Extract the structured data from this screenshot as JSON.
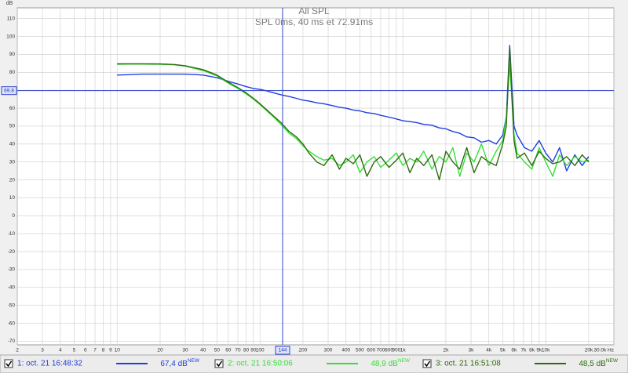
{
  "chart_data": {
    "type": "line",
    "title": "All SPL",
    "subtitle": "SPL 0ms, 40 ms et 72.91ms",
    "y_label": "dB",
    "log_x": true,
    "grid": true,
    "xlim": [
      2,
      30000
    ],
    "ylim": [
      -72,
      116
    ],
    "xticks": [
      2,
      3,
      4,
      5,
      6,
      7,
      8,
      9,
      10,
      20,
      30,
      40,
      50,
      60,
      70,
      80,
      90,
      100,
      200,
      300,
      400,
      500,
      600,
      700,
      800,
      900,
      {
        "value": 1000,
        "label": "1k"
      },
      {
        "value": 2000,
        "label": "2k"
      },
      {
        "value": 3000,
        "label": "3k"
      },
      {
        "value": 4000,
        "label": "4k"
      },
      {
        "value": 5000,
        "label": "5k"
      },
      {
        "value": 6000,
        "label": "6k"
      },
      {
        "value": 7000,
        "label": "7k"
      },
      {
        "value": 8000,
        "label": "8k"
      },
      {
        "value": 9000,
        "label": "9k"
      },
      {
        "value": 10000,
        "label": "10k"
      },
      {
        "value": 20000,
        "label": "20k"
      },
      {
        "value": 30000,
        "label": "30.0k Hz"
      }
    ],
    "yticks": [
      110,
      100,
      90,
      80,
      70,
      60,
      50,
      40,
      30,
      20,
      10,
      0,
      -10,
      -20,
      -30,
      -40,
      -50,
      -60,
      -70
    ],
    "cursor_x": 144,
    "cursor_y": 69.8,
    "x": [
      10,
      12,
      15,
      20,
      25,
      30,
      40,
      50,
      60,
      70,
      80,
      90,
      100,
      110,
      125,
      140,
      160,
      180,
      200,
      220,
      250,
      280,
      320,
      360,
      400,
      450,
      500,
      560,
      630,
      700,
      800,
      900,
      1000,
      1120,
      1250,
      1400,
      1600,
      1800,
      2000,
      2240,
      2500,
      2800,
      3150,
      3550,
      4000,
      4500,
      5000,
      5300,
      5600,
      6000,
      6300,
      7100,
      8000,
      9000,
      10000,
      11200,
      12500,
      14000,
      16000,
      18000,
      20000
    ],
    "series": [
      {
        "name": "1: oct. 21 16:48:32",
        "level": "67,4 dB",
        "badge": "NEW",
        "color": "#1f3fe0",
        "values": [
          78.5,
          78.7,
          79,
          79,
          79,
          79,
          78.5,
          77,
          75,
          73.5,
          72,
          71,
          70.5,
          69.8,
          68.5,
          67.5,
          66.5,
          65.5,
          64.5,
          64,
          63,
          62.5,
          61.5,
          60.5,
          60,
          59,
          58.5,
          57.5,
          57,
          56,
          55,
          54,
          53,
          52.5,
          52,
          51,
          50.5,
          49,
          48.5,
          47,
          46,
          44,
          43.5,
          41,
          42,
          40,
          45,
          55,
          95,
          50,
          45,
          38,
          36,
          42,
          35,
          30,
          38,
          25,
          34,
          28,
          33
        ]
      },
      {
        "name": "2: oct. 21 16:50:06",
        "level": "48,9 dB",
        "badge": "NEW",
        "color": "#33e033",
        "values": [
          84.5,
          84.6,
          84.6,
          84.5,
          84.2,
          83.5,
          81,
          78,
          74,
          71,
          68,
          65,
          62,
          59,
          55,
          51,
          46,
          43,
          39,
          36,
          33,
          31,
          32,
          28,
          30,
          34,
          24,
          30,
          33,
          27,
          31,
          35,
          28,
          32,
          30,
          36,
          26,
          33,
          30,
          38,
          22,
          35,
          30,
          40,
          28,
          36,
          42,
          55,
          85,
          45,
          35,
          30,
          26,
          38,
          30,
          22,
          34,
          28,
          33,
          30,
          31
        ]
      },
      {
        "name": "3: oct. 21 16:51:08",
        "level": "48,5 dB",
        "badge": "NEW",
        "color": "#2e6b10",
        "values": [
          84.8,
          84.8,
          84.8,
          84.7,
          84.4,
          83.7,
          81.5,
          78.5,
          74.5,
          71.5,
          68.5,
          65.5,
          62.5,
          59.5,
          55.5,
          52,
          47,
          44,
          40,
          35,
          30,
          28,
          34,
          26,
          32,
          29,
          34,
          22,
          30,
          33,
          27,
          31,
          35,
          24,
          32,
          28,
          34,
          20,
          36,
          30,
          26,
          38,
          24,
          33,
          30,
          28,
          40,
          50,
          94,
          42,
          32,
          35,
          28,
          36,
          32,
          29,
          30,
          33,
          28,
          34,
          30
        ]
      }
    ]
  }
}
